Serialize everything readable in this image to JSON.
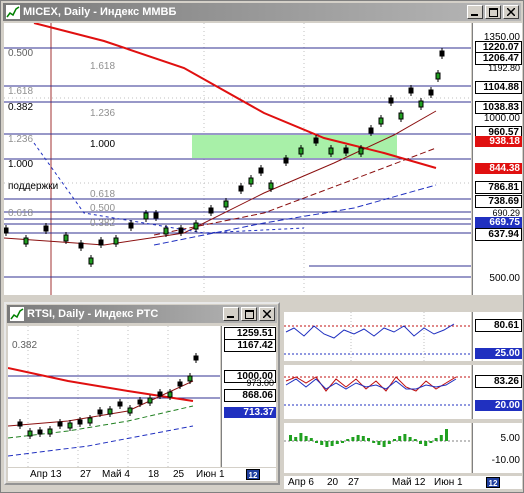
{
  "main": {
    "title": "MICEX, Daily - Индекс ММВБ",
    "axis_labels": [
      "1350.00",
      "1220.07",
      "1206.47",
      "1192.80",
      "1104.88",
      "1038.83",
      "1000.00",
      "960.57",
      "938.18",
      "844.38",
      "786.81",
      "738.69",
      "690.29",
      "669.75",
      "637.94",
      "500.00"
    ],
    "fib_labels": [
      "0.500",
      "1.618",
      "1.618",
      "0.382",
      "1.236",
      "1.236",
      "1.000",
      "1.000",
      "0.618",
      "0.618",
      "0.500",
      "0.382"
    ],
    "support_text": "поддержки",
    "colors": {
      "ma_red": "#e01010",
      "ma_dark_red": "#8b1010",
      "ma_blue": "#2030c0",
      "ma_green": "#208020",
      "zone": "#a8f0a8",
      "badge_red": "#e01010"
    }
  },
  "rtsi": {
    "title": "RTSI, Daily - Индекс РТС",
    "axis_labels": [
      "1259.51",
      "1167.42",
      "1000.00",
      "973.00",
      "868.06",
      "713.37"
    ],
    "fib_label": "0.382",
    "dates": [
      "Апр 13",
      "27",
      "Май 4",
      "18",
      "25",
      "Июн 1"
    ]
  },
  "oscillators": {
    "panel1_labels": [
      "80.61",
      "25.00"
    ],
    "panel2_labels": [
      "83.26",
      "20.00"
    ],
    "panel3_labels": [
      "5.00",
      "-10.00"
    ],
    "dates": [
      "Апр 6",
      "20",
      "27",
      "Май 12",
      "Июн 1"
    ]
  },
  "calendar_icon_text": "12"
}
